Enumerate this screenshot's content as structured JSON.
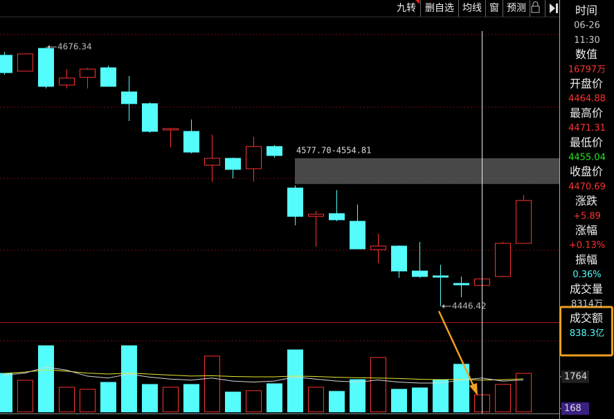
{
  "toolbar": [
    "九转",
    "删自选",
    "均线",
    "窗",
    "预测"
  ],
  "chart_data": [
    {
      "type": "candlestick",
      "ylim": [
        4432.3,
        4718.0
      ],
      "up_color": "#ff3232",
      "down_color": "#54fcfc",
      "open": [
        4669.0,
        4654.9,
        4675.1,
        4642.6,
        4649.4,
        4657.9,
        4636.5,
        4626.1,
        4602.8,
        4601.5,
        4571.5,
        4577.6,
        4568.4,
        4588.1,
        4551.3,
        4526.1,
        4528.6,
        4521.8,
        4496.7,
        4499.8,
        4477.7,
        4473.4,
        4466.7,
        4464.88,
        4472.8,
        4502.2
      ],
      "high": [
        4672.0,
        4670.2,
        4676.34,
        4656.7,
        4657.9,
        4659.8,
        4650.6,
        4627.3,
        4604.6,
        4612.0,
        4598.5,
        4578.2,
        4596.6,
        4589.3,
        4553.7,
        4531.0,
        4549.4,
        4536.6,
        4510.8,
        4500.4,
        4503.5,
        4483.2,
        4472.8,
        4471.31,
        4503.5,
        4545.1
      ],
      "low": [
        4651.8,
        4654.9,
        4639.6,
        4639.6,
        4639.6,
        4641.4,
        4610.7,
        4600.3,
        4587.4,
        4581.9,
        4556.8,
        4559.8,
        4556.8,
        4578.2,
        4518.2,
        4499.2,
        4521.8,
        4497.3,
        4484.6,
        4471.6,
        4471.6,
        4446.42,
        4454.4,
        4455.04,
        4472.2,
        4502.2
      ],
      "close": [
        4653.6,
        4670.2,
        4641.4,
        4648.8,
        4656.7,
        4641.4,
        4626.1,
        4601.5,
        4604.0,
        4583.1,
        4577.6,
        4567.8,
        4588.1,
        4580.1,
        4526.1,
        4528.0,
        4523.1,
        4497.3,
        4499.8,
        4477.7,
        4472.8,
        4472.2,
        4465.4,
        4470.69,
        4502.2,
        4540.2
      ],
      "gap": {
        "label": "4577.70-4554.81",
        "high": 4577.7,
        "low": 4554.81
      }
    },
    {
      "type": "bar",
      "ylim": [
        0,
        4365
      ],
      "yticks": [
        1764,
        168
      ],
      "values": [
        1936,
        1589,
        3324,
        1242,
        1138,
        1485,
        3324,
        1381,
        1242,
        1381,
        2804,
        999,
        1069,
        1416,
        3116,
        1242,
        1034,
        1624,
        2734,
        1138,
        1207,
        1624,
        2394,
        860,
        1381,
        1936
      ],
      "series": [
        {
          "color": "#e8e832",
          "values": [
            1936,
            2000,
            2110,
            2050,
            1950,
            1900,
            1950,
            1900,
            1850,
            1800,
            1820,
            1780,
            1763,
            1763,
            1800,
            1780,
            1740,
            1720,
            1700,
            1680,
            1640,
            1620,
            1640,
            1600,
            1620,
            1659
          ]
        },
        {
          "color": "#d8d8d8",
          "values": [
            1850,
            1950,
            2250,
            2100,
            1800,
            1700,
            1900,
            1750,
            1650,
            1600,
            1700,
            1550,
            1500,
            1550,
            1750,
            1650,
            1550,
            1500,
            1600,
            1500,
            1450,
            1450,
            1600,
            1700,
            1550,
            1600
          ]
        }
      ]
    }
  ],
  "info_panel": [
    {
      "label": "时间",
      "values": [
        "06-26",
        "11:30"
      ],
      "color": "#c8c8c8"
    },
    {
      "label": "数值",
      "values": [
        "16797万"
      ],
      "color": "#ff3232"
    },
    {
      "label": "开盘价",
      "color": "#ff3232"
    },
    {
      "label": "最高价",
      "color": "#ff3232"
    },
    {
      "label": "最低价",
      "color": "#22e622"
    },
    {
      "label": "收盘价",
      "color": "#ff3232"
    },
    {
      "label": "涨跌",
      "values": [
        "+5.89"
      ],
      "color": "#ff3232"
    },
    {
      "label": "涨幅",
      "values": [
        "+0.13%"
      ],
      "color": "#ff3232"
    },
    {
      "label": "振幅",
      "values": [
        "0.36%"
      ],
      "color": "#54fcfc"
    },
    {
      "label": "成交量",
      "values": [
        "8314万"
      ],
      "color": "#c8c8c8"
    },
    {
      "label": "成交额",
      "values": [
        "838.3亿"
      ],
      "color": "#54fcfc"
    }
  ]
}
